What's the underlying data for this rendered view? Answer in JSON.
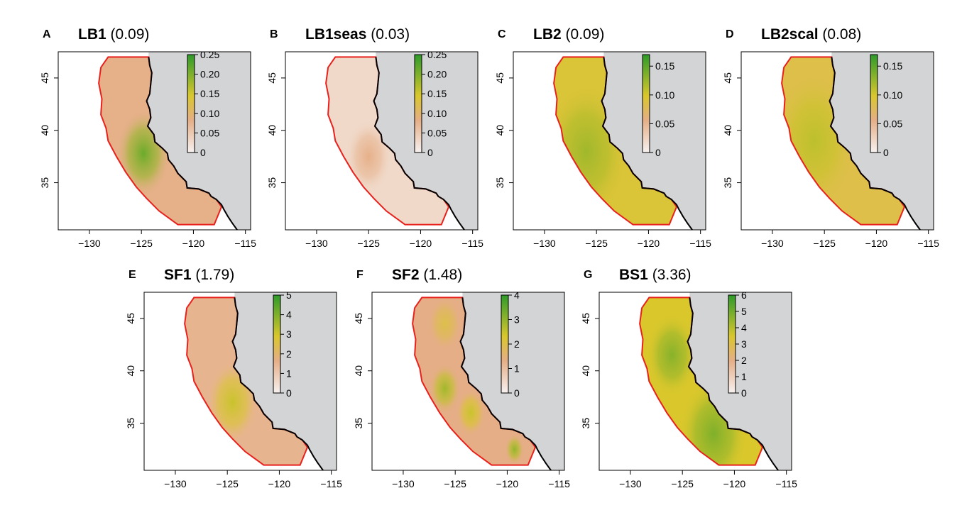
{
  "colors": {
    "land": "#d3d4d6",
    "domain_outline": "#e8211d",
    "coastline": "#000000",
    "scale_low": "#f7f1f0",
    "scale_mid1": "#e5ae86",
    "scale_mid2": "#d9c72c",
    "scale_high": "#2d9b2a"
  },
  "chart_data": [
    {
      "type": "heatmap",
      "panel": "A",
      "name": "LB1",
      "value": "(0.09)",
      "xticks": [
        "-130",
        "-125",
        "-120",
        "-115"
      ],
      "yticks": [
        "35",
        "40",
        "45"
      ],
      "xlim": [
        -133,
        -114.5
      ],
      "ylim": [
        30.5,
        47.5
      ],
      "legend_ticks": [
        "0",
        "0.05",
        "0.10",
        "0.15",
        "0.20",
        "0.25"
      ],
      "legend_max": 0.25,
      "hotspots": [
        {
          "lon": -124.8,
          "lat": 37.8,
          "level": 0.85,
          "spread": 2.6
        }
      ],
      "background_level": 0.32
    },
    {
      "type": "heatmap",
      "panel": "B",
      "name": "LB1seas",
      "value": "(0.03)",
      "xticks": [
        "-130",
        "-125",
        "-120",
        "-115"
      ],
      "yticks": [
        "35",
        "40",
        "45"
      ],
      "xlim": [
        -133,
        -114.5
      ],
      "ylim": [
        30.5,
        47.5
      ],
      "legend_ticks": [
        "0",
        "0.05",
        "0.10",
        "0.15",
        "0.20",
        "0.25"
      ],
      "legend_max": 0.25,
      "hotspots": [
        {
          "lon": -125,
          "lat": 37.5,
          "level": 0.32,
          "spread": 2.2
        }
      ],
      "background_level": 0.12
    },
    {
      "type": "heatmap",
      "panel": "C",
      "name": "LB2",
      "value": "(0.09)",
      "xticks": [
        "-130",
        "-125",
        "-120",
        "-115"
      ],
      "yticks": [
        "35",
        "40",
        "45"
      ],
      "xlim": [
        -133,
        -114.5
      ],
      "ylim": [
        30.5,
        47.5
      ],
      "legend_ticks": [
        "0",
        "0.05",
        "0.10",
        "0.15"
      ],
      "legend_max": 0.17,
      "hotspots": [
        {
          "lon": -126,
          "lat": 38,
          "level": 0.72,
          "spread": 4
        }
      ],
      "background_level": 0.55
    },
    {
      "type": "heatmap",
      "panel": "D",
      "name": "LB2scal",
      "value": "(0.08)",
      "xticks": [
        "-130",
        "-125",
        "-120",
        "-115"
      ],
      "yticks": [
        "35",
        "40",
        "45"
      ],
      "xlim": [
        -133,
        -114.5
      ],
      "ylim": [
        30.5,
        47.5
      ],
      "legend_ticks": [
        "0",
        "0.05",
        "0.10",
        "0.15"
      ],
      "legend_max": 0.17,
      "hotspots": [
        {
          "lon": -126,
          "lat": 39,
          "level": 0.65,
          "spread": 4
        }
      ],
      "background_level": 0.5
    },
    {
      "type": "heatmap",
      "panel": "E",
      "name": "SF1",
      "value": "(1.79)",
      "xticks": [
        "-130",
        "-125",
        "-120",
        "-115"
      ],
      "yticks": [
        "35",
        "40",
        "45"
      ],
      "xlim": [
        -133,
        -114.5
      ],
      "ylim": [
        30.5,
        47.5
      ],
      "legend_ticks": [
        "0",
        "1",
        "2",
        "3",
        "4",
        "5"
      ],
      "legend_max": 5,
      "hotspots": [
        {
          "lon": -124.5,
          "lat": 37,
          "level": 0.62,
          "spread": 2.5
        }
      ],
      "background_level": 0.3
    },
    {
      "type": "heatmap",
      "panel": "F",
      "name": "SF2",
      "value": "(1.48)",
      "xticks": [
        "-130",
        "-125",
        "-120",
        "-115"
      ],
      "yticks": [
        "35",
        "40",
        "45"
      ],
      "xlim": [
        -133,
        -114.5
      ],
      "ylim": [
        30.5,
        47.5
      ],
      "legend_ticks": [
        "0",
        "1",
        "2",
        "3",
        "4"
      ],
      "legend_max": 4,
      "hotspots": [
        {
          "lon": -126,
          "lat": 38.3,
          "level": 0.72,
          "spread": 1.5
        },
        {
          "lon": -123.5,
          "lat": 36,
          "level": 0.62,
          "spread": 1.4
        },
        {
          "lon": -119.3,
          "lat": 32.5,
          "level": 0.75,
          "spread": 0.9
        },
        {
          "lon": -126,
          "lat": 44.5,
          "level": 0.5,
          "spread": 1.6
        }
      ],
      "background_level": 0.33
    },
    {
      "type": "heatmap",
      "panel": "G",
      "name": "BS1",
      "value": "(3.36)",
      "xticks": [
        "-130",
        "-125",
        "-120",
        "-115"
      ],
      "yticks": [
        "35",
        "40",
        "45"
      ],
      "xlim": [
        -133,
        -114.5
      ],
      "ylim": [
        30.5,
        47.5
      ],
      "legend_ticks": [
        "0",
        "1",
        "2",
        "3",
        "4",
        "5",
        "6"
      ],
      "legend_max": 6,
      "hotspots": [
        {
          "lon": -126,
          "lat": 41.5,
          "level": 0.78,
          "spread": 2.4
        },
        {
          "lon": -122,
          "lat": 34,
          "level": 0.8,
          "spread": 3.2
        }
      ],
      "background_level": 0.58
    }
  ]
}
